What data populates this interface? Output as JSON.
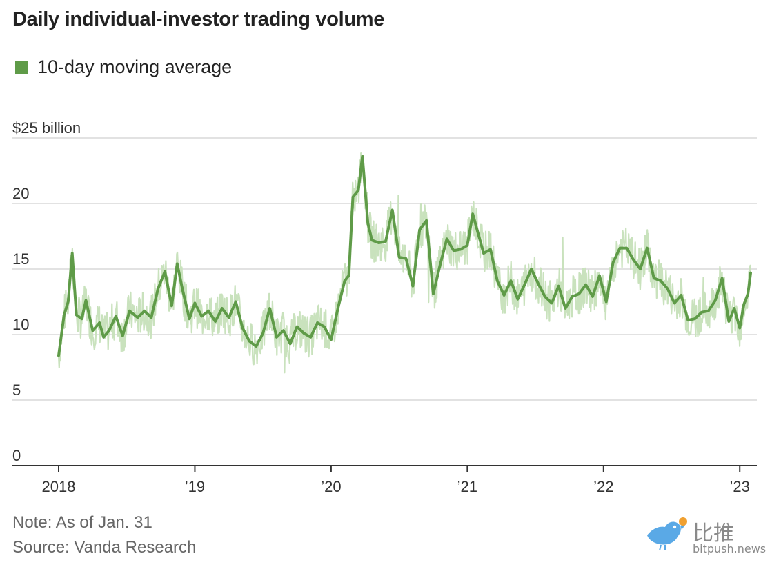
{
  "chart_data": {
    "type": "line",
    "title": "Daily individual-investor trading volume",
    "legend": [
      "10-day moving average"
    ],
    "ylabel": "$25 billion",
    "y_ticks": [
      0,
      5,
      10,
      15,
      20,
      25
    ],
    "y_tick_labels": [
      "0",
      "5",
      "10",
      "15",
      "20",
      "$25 billion"
    ],
    "ylim": [
      0,
      25
    ],
    "xlim": [
      2018.0,
      2023.09
    ],
    "x_ticks": [
      2018,
      2019,
      2020,
      2021,
      2022,
      2023
    ],
    "x_tick_labels": [
      "2018",
      "’19",
      "’20",
      "’21",
      "’22",
      "’23"
    ],
    "series": [
      {
        "name": "10-day moving average",
        "color": "#5f9b48",
        "x": [
          2018.0,
          2018.04,
          2018.07,
          2018.1,
          2018.13,
          2018.17,
          2018.2,
          2018.25,
          2018.3,
          2018.33,
          2018.37,
          2018.42,
          2018.47,
          2018.52,
          2018.58,
          2018.63,
          2018.68,
          2018.73,
          2018.78,
          2018.83,
          2018.87,
          2018.91,
          2018.96,
          2019.0,
          2019.05,
          2019.1,
          2019.15,
          2019.2,
          2019.25,
          2019.3,
          2019.35,
          2019.4,
          2019.45,
          2019.5,
          2019.55,
          2019.6,
          2019.65,
          2019.7,
          2019.75,
          2019.8,
          2019.85,
          2019.9,
          2019.95,
          2020.0,
          2020.05,
          2020.1,
          2020.13,
          2020.16,
          2020.2,
          2020.23,
          2020.27,
          2020.3,
          2020.35,
          2020.4,
          2020.45,
          2020.5,
          2020.55,
          2020.6,
          2020.65,
          2020.7,
          2020.75,
          2020.8,
          2020.85,
          2020.9,
          2020.95,
          2021.0,
          2021.04,
          2021.08,
          2021.12,
          2021.17,
          2021.22,
          2021.27,
          2021.32,
          2021.37,
          2021.42,
          2021.47,
          2021.52,
          2021.57,
          2021.62,
          2021.67,
          2021.72,
          2021.77,
          2021.82,
          2021.87,
          2021.92,
          2021.97,
          2022.02,
          2022.07,
          2022.12,
          2022.17,
          2022.22,
          2022.27,
          2022.32,
          2022.37,
          2022.42,
          2022.47,
          2022.52,
          2022.57,
          2022.62,
          2022.67,
          2022.72,
          2022.77,
          2022.82,
          2022.87,
          2022.92,
          2022.96,
          2023.0,
          2023.03,
          2023.06,
          2023.08
        ],
        "values": [
          8.4,
          11.5,
          12.5,
          16.2,
          11.5,
          11.2,
          12.6,
          10.3,
          10.9,
          9.8,
          10.3,
          11.4,
          9.9,
          11.8,
          11.3,
          11.8,
          11.3,
          13.5,
          14.8,
          12.2,
          15.4,
          13.4,
          11.2,
          12.4,
          11.4,
          11.8,
          11.0,
          12.0,
          11.3,
          12.5,
          10.5,
          9.5,
          9.1,
          10.1,
          12.0,
          9.8,
          10.3,
          9.3,
          10.6,
          10.1,
          9.8,
          10.9,
          10.6,
          9.6,
          12.0,
          14.1,
          14.5,
          20.5,
          21.0,
          23.6,
          18.5,
          17.2,
          17.0,
          17.1,
          19.5,
          15.9,
          15.8,
          13.7,
          18.0,
          18.7,
          13.1,
          15.3,
          17.3,
          16.4,
          16.5,
          16.8,
          19.2,
          17.7,
          16.2,
          16.5,
          14.1,
          13.0,
          14.1,
          12.7,
          13.8,
          15.0,
          13.9,
          12.9,
          12.4,
          13.7,
          12.0,
          12.9,
          13.1,
          13.8,
          12.9,
          14.5,
          12.5,
          15.5,
          16.6,
          16.6,
          15.7,
          15.0,
          16.6,
          14.3,
          14.1,
          13.5,
          12.4,
          13.0,
          11.1,
          11.2,
          11.7,
          11.8,
          12.6,
          14.3,
          11.0,
          12.0,
          10.5,
          12.3,
          13.1,
          14.7
        ]
      }
    ]
  },
  "note": "Note: As of Jan. 31",
  "source": "Source: Vanda Research",
  "watermark": {
    "chinese": "比推",
    "url": "bitpush.news"
  }
}
